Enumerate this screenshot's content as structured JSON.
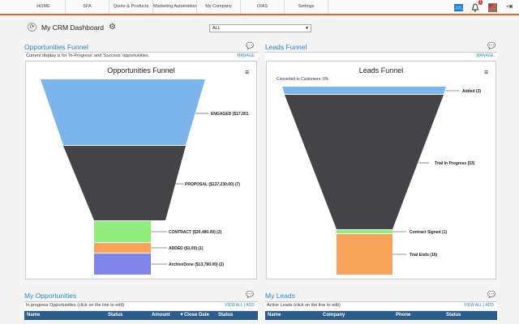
{
  "nav": {
    "tabs": [
      "HOME",
      "SFA",
      "Quote & Products",
      "Marketing Automation",
      "My Company",
      "OIAS",
      "Settings"
    ],
    "notification_count": "1"
  },
  "header": {
    "refresh_glyph": "⟳",
    "title": "My CRM Dashboard",
    "filter_value": "ALL"
  },
  "opportunities_funnel": {
    "panel_title": "Opportunities Funnel",
    "info": "Current display is for 'In-Progress' and 'Success' opportunities.",
    "manage": "MANAGE",
    "chart_title": "Opportunities Funnel"
  },
  "leads_funnel": {
    "panel_title": "Leads Funnel",
    "manage": "MANAGE",
    "chart_title": "Leads Funnel",
    "subtitle": "Converted to Customers: 0%"
  },
  "chart_data": [
    {
      "type": "funnel",
      "title": "Opportunities Funnel",
      "categories": [
        "ENGAGED ($17,001.",
        "PROPOSAL ($137,230.00) (7)",
        "CONTRACT ($30,480.00) (2)",
        "ADDED ($1.00) (1)",
        "ArchiveDone ($13,780.00) (2)"
      ],
      "colors": [
        "#7cb5ec",
        "#434348",
        "#90ed7d",
        "#f7a35c",
        "#8085e9"
      ]
    },
    {
      "type": "funnel",
      "title": "Leads Funnel",
      "categories": [
        "Added (3)",
        "Trial In Progress (53)",
        "Contract Signed (1)",
        "Trial Ends (16)"
      ],
      "values": [
        3,
        53,
        1,
        16
      ],
      "colors": [
        "#7cb5ec",
        "#434348",
        "#90ed7d",
        "#f7a35c"
      ]
    }
  ],
  "my_opportunities": {
    "panel_title": "My Opportunities",
    "info": "In progress Opportunities (click on the line to edit)",
    "link": "VIEW ALL | ADD",
    "columns": [
      "Name",
      "Status",
      "Amount",
      "▼Close Date",
      "Status"
    ]
  },
  "my_leads": {
    "panel_title": "My Leads",
    "info": "Active Leads (click on the line to edit)",
    "link": "VIEW ALL | ADD",
    "columns": [
      "Name",
      "Company",
      "Phone",
      "Status"
    ]
  }
}
